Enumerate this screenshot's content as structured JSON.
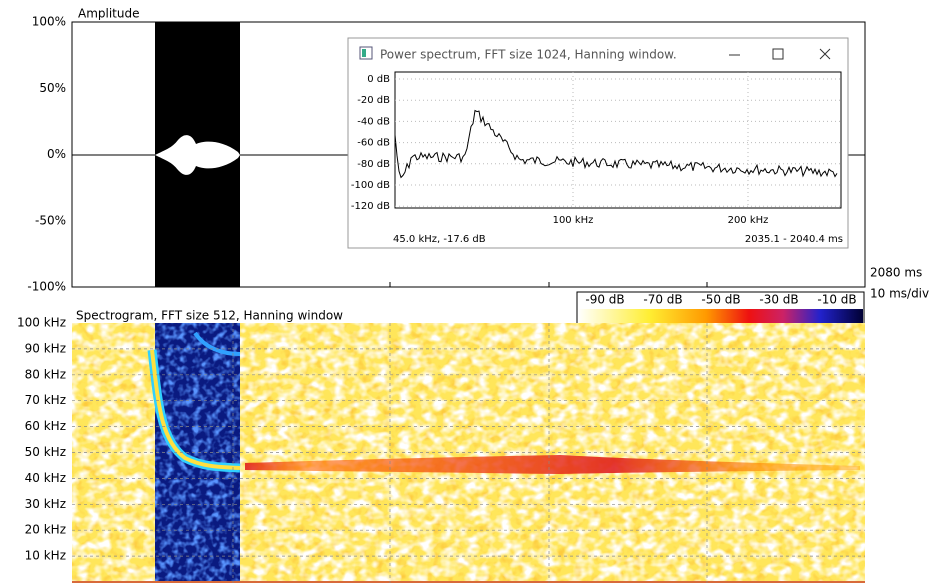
{
  "waveform": {
    "title": "Amplitude",
    "y_labels": [
      "100%",
      "50%",
      "0%",
      "-50%",
      "-100%"
    ]
  },
  "time_axis": {
    "end": "2080 ms",
    "scale": "10 ms/div"
  },
  "color_scale": {
    "labels": [
      "-90 dB",
      "-70 dB",
      "-50 dB",
      "-30 dB",
      "-10 dB"
    ]
  },
  "spectrogram": {
    "title": "Spectrogram, FFT size 512, Hanning window",
    "y_labels": [
      "100 kHz",
      "90 kHz",
      "80 kHz",
      "70 kHz",
      "60 kHz",
      "50 kHz",
      "40 kHz",
      "30 kHz",
      "20 kHz",
      "10 kHz"
    ]
  },
  "power_spectrum_window": {
    "title": "Power spectrum, FFT size 1024, Hanning window.",
    "y_labels": [
      "0 dB",
      "-20 dB",
      "-40 dB",
      "-60 dB",
      "-80 dB",
      "-100 dB",
      "-120 dB"
    ],
    "x_labels": [
      "100 kHz",
      "200 kHz"
    ],
    "cursor": "45.0 kHz, -17.6 dB",
    "time_range": "2035.1 - 2040.4 ms"
  }
}
